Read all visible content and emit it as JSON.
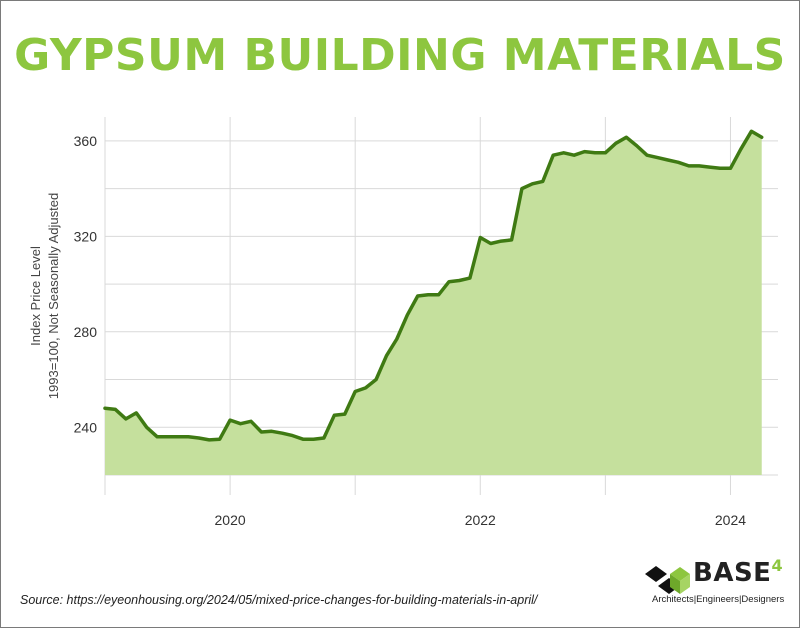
{
  "chart_data": {
    "type": "area",
    "title": "GYPSUM BUILDING MATERIALS",
    "ylabel": [
      "Index Price Level",
      "1993=100, Not Seasonally Adjusted"
    ],
    "xlabel": "",
    "x_ticks": [
      "2020",
      "2022",
      "2024"
    ],
    "x_tick_values": [
      2020,
      2022,
      2024
    ],
    "y_ticks": [
      "240",
      "280",
      "320",
      "360"
    ],
    "y_tick_values": [
      240,
      280,
      320,
      360
    ],
    "xlim": [
      2019.0,
      2024.38
    ],
    "ylim": [
      220,
      370
    ],
    "grid": true,
    "colors": {
      "line": "#3f7a13",
      "fill": "#c5e09d",
      "title": "#8dc63f",
      "grid": "#d9d9d9"
    },
    "series": [
      {
        "x": [
          2019.0,
          2019.083,
          2019.167,
          2019.25,
          2019.333,
          2019.417,
          2019.5,
          2019.583,
          2019.667,
          2019.75,
          2019.833,
          2019.917,
          2020.0,
          2020.083,
          2020.167,
          2020.25,
          2020.333,
          2020.417,
          2020.5,
          2020.583,
          2020.667,
          2020.75,
          2020.833,
          2020.917,
          2021.0,
          2021.083,
          2021.167,
          2021.25,
          2021.333,
          2021.417,
          2021.5,
          2021.583,
          2021.667,
          2021.75,
          2021.833,
          2021.917,
          2022.0,
          2022.083,
          2022.167,
          2022.25,
          2022.333,
          2022.417,
          2022.5,
          2022.583,
          2022.667,
          2022.75,
          2022.833,
          2022.917,
          2023.0,
          2023.083,
          2023.167,
          2023.25,
          2023.333,
          2023.417,
          2023.5,
          2023.583,
          2023.667,
          2023.75,
          2023.833,
          2023.917,
          2024.0,
          2024.083,
          2024.167,
          2024.25
        ],
        "values": [
          248,
          247.5,
          243.5,
          246,
          240,
          236,
          236,
          236,
          236,
          235.5,
          234.7,
          235,
          243,
          241.5,
          242.5,
          238,
          238.3,
          237.5,
          236.5,
          235,
          235,
          235.5,
          245,
          245.5,
          255,
          256.5,
          260,
          270,
          277,
          287,
          295,
          295.5,
          295.5,
          301,
          301.5,
          302.5,
          319.5,
          317,
          318,
          318.5,
          340,
          342,
          343,
          354,
          355,
          354,
          355.5,
          355,
          355,
          359,
          361.5,
          358,
          354,
          353,
          352,
          351,
          349.5,
          349.5,
          349,
          348.5,
          348.5,
          356.5,
          364,
          361.5
        ]
      }
    ]
  },
  "source": "Source: https://eyeonhousing.org/2024/05/mixed-price-changes-for-building-materials-in-april/",
  "logo": {
    "word": "BASE",
    "sup": "4",
    "tagline": "Architects|Engineers|Designers"
  }
}
